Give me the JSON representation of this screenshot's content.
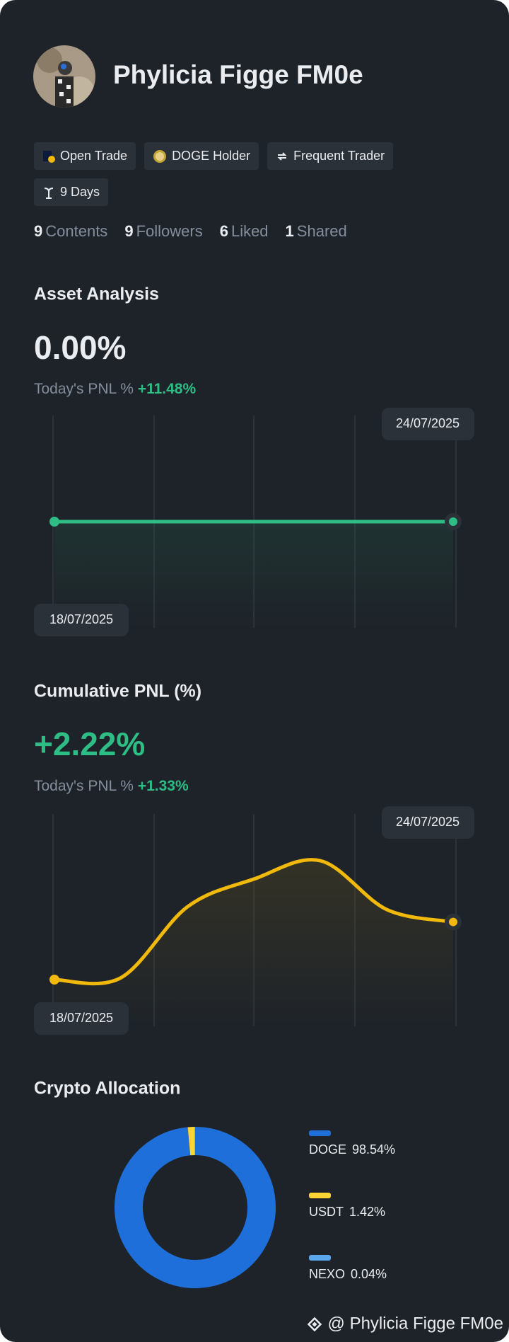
{
  "profile": {
    "name": "Phylicia Figge FM0e",
    "badges": [
      "Open Trade",
      "DOGE Holder",
      "Frequent Trader",
      "9 Days"
    ],
    "stats": [
      {
        "count": 9,
        "label": "Contents"
      },
      {
        "count": 9,
        "label": "Followers"
      },
      {
        "count": 6,
        "label": "Liked"
      },
      {
        "count": 1,
        "label": "Shared"
      }
    ]
  },
  "chart_data": [
    {
      "type": "line",
      "title": "Asset Analysis",
      "value_text": "0.00%",
      "pnl_label": "Today's PNL %",
      "pnl_value": "+11.48%",
      "categories": [
        "18/07/2025",
        null,
        null,
        null,
        null,
        null,
        "24/07/2025"
      ],
      "values": [
        0,
        0,
        0,
        0,
        0,
        0,
        0
      ],
      "color": "#2ebd85"
    },
    {
      "type": "line",
      "title": "Cumulative PNL (%)",
      "value_text": "+2.22%",
      "pnl_label": "Today's PNL %",
      "pnl_value": "+1.33%",
      "categories": [
        "18/07/2025",
        null,
        null,
        null,
        null,
        null,
        "24/07/2025"
      ],
      "values": [
        0,
        0.07,
        2.8,
        3.87,
        4.58,
        2.7,
        2.22
      ],
      "color": "#f0b90b"
    },
    {
      "type": "pie",
      "title": "Crypto Allocation",
      "categories": [
        "DOGE",
        "USDT",
        "NEXO"
      ],
      "values": [
        98.54,
        1.42,
        0.04
      ],
      "value_labels": [
        "98.54%",
        "1.42%",
        "0.04%"
      ],
      "colors": [
        "#1e6fd9",
        "#fcd535",
        "#5ba7ec"
      ]
    }
  ],
  "footer": "@ Phylicia Figge FM0e"
}
